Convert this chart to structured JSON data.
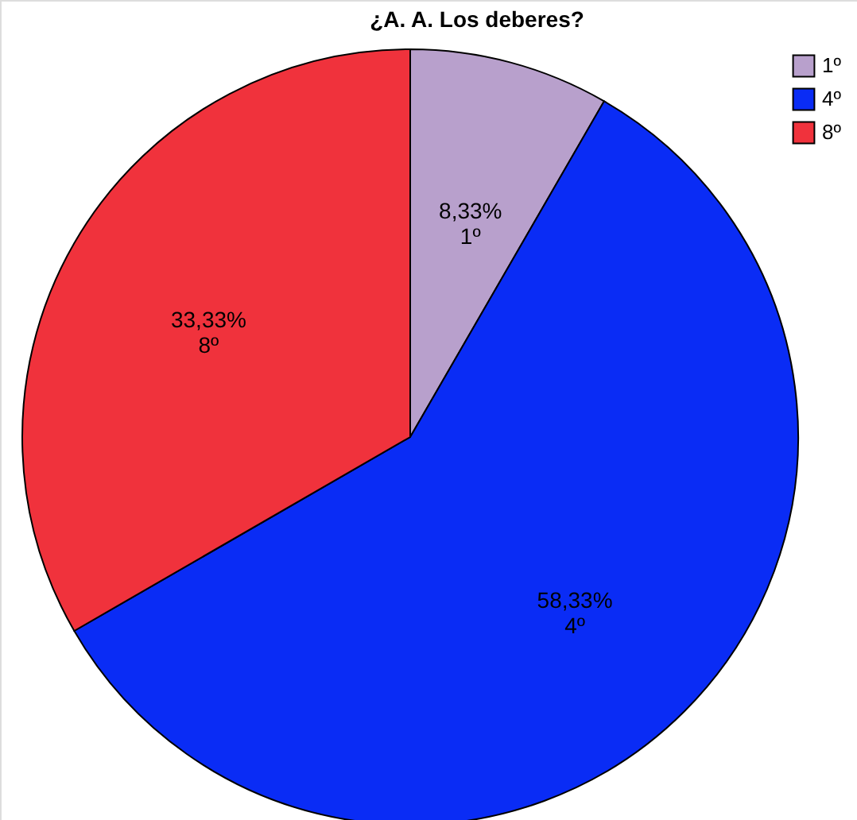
{
  "chart_data": {
    "type": "pie",
    "title": "¿A. A. Los deberes?",
    "categories": [
      "1º",
      "4º",
      "8º"
    ],
    "values": [
      8.33,
      58.33,
      33.33
    ],
    "colors": [
      "#b8a0cc",
      "#0a2cf5",
      "#f0323c"
    ],
    "value_labels": [
      "8,33%",
      "58,33%",
      "33,33%"
    ],
    "legend": "top right"
  }
}
